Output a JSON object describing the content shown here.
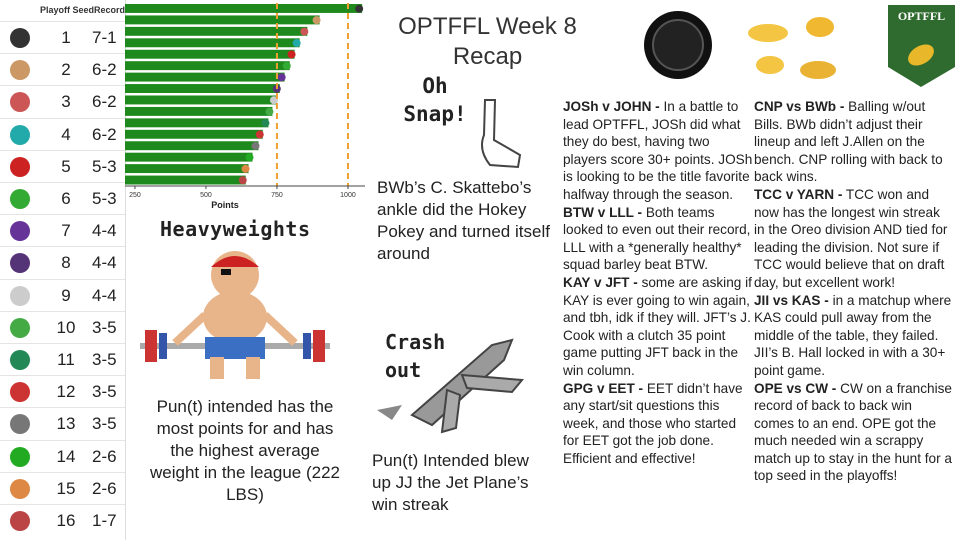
{
  "title": "OPTFFL Week 8 Recap",
  "logo": "OPTFFL",
  "standings": {
    "headers": [
      "Playoff Seed",
      "Record"
    ],
    "rows": [
      [
        1,
        "7-1"
      ],
      [
        2,
        "6-2"
      ],
      [
        3,
        "6-2"
      ],
      [
        4,
        "6-2"
      ],
      [
        5,
        "5-3"
      ],
      [
        6,
        "5-3"
      ],
      [
        7,
        "4-4"
      ],
      [
        8,
        "4-4"
      ],
      [
        9,
        "4-4"
      ],
      [
        10,
        "3-5"
      ],
      [
        11,
        "3-5"
      ],
      [
        12,
        "3-5"
      ],
      [
        13,
        "3-5"
      ],
      [
        14,
        "2-6"
      ],
      [
        15,
        "2-6"
      ],
      [
        16,
        "1-7"
      ]
    ]
  },
  "chart_data": {
    "type": "bar",
    "orientation": "horizontal",
    "xlabel": "Points",
    "values": [
      1050,
      900,
      857,
      830,
      812,
      795,
      777,
      760,
      750,
      734,
      720,
      700,
      685,
      664,
      650,
      640
    ],
    "color": "#1e8a1e",
    "xlim": [
      215,
      1060
    ],
    "xticks": [
      250,
      500,
      750,
      1000
    ],
    "reference_lines": [
      750,
      1000
    ],
    "reference_color": "#f0a030"
  },
  "oh_snap": {
    "title": "Oh Snap!",
    "caption": "BWb’s C. Skattebo’s ankle did the Hokey Pokey and turned itself around"
  },
  "heavyweights": {
    "title": "Heavyweights",
    "caption": "Pun(t) intended has the most points for and has the highest average weight in the league (222 LBS)"
  },
  "crash_out": {
    "title": "Crash out",
    "caption": "Pun(t) Intended blew up JJ the Jet Plane’s win streak"
  },
  "recaps": [
    [
      {
        "heading": "JOSh v JOHN  -",
        "body": "In a battle to lead OPTFFL, JOSh did what they do best, having two players score 30+ points. JOSh is looking to be the title favorite halfway through the season."
      },
      {
        "heading": "BTW v LLL -",
        "body": "Both teams looked to even out their record, LLL with a *generally healthy* squad barley beat BTW."
      },
      {
        "heading": "KAY v JFT -",
        "body": "some are asking if KAY is ever going to win again, and tbh, idk if they will. JFT’s J. Cook with a clutch 35 point game putting JFT back in the win column."
      },
      {
        "heading": "GPG v EET -",
        "body": "EET didn’t have any start/sit questions this week, and those who started for EET got the job done. Efficient and effective!"
      }
    ],
    [
      {
        "heading": "CNP vs BWb -",
        "body": "Balling w/out Bills. BWb didn’t adjust their lineup and left J.Allen on the bench. CNP rolling with back to back wins."
      },
      {
        "heading": "TCC v YARN -",
        "body": "TCC won and now has the longest win streak in the Oreo division AND tied for leading the division. Not sure if TCC would believe that on draft day, but excellent work!"
      },
      {
        "heading": "JII vs KAS -",
        "body": "in a matchup where KAS could pull away from the middle of the table, they failed. JII’s B. Hall locked in with a 30+ point game."
      },
      {
        "heading": "OPE vs CW -",
        "body": "CW on a franchise record of back to back win comes to an end. OPE got the much needed win a scrappy match up to stay in the hunt for a top seed in the playoffs!"
      }
    ]
  ]
}
